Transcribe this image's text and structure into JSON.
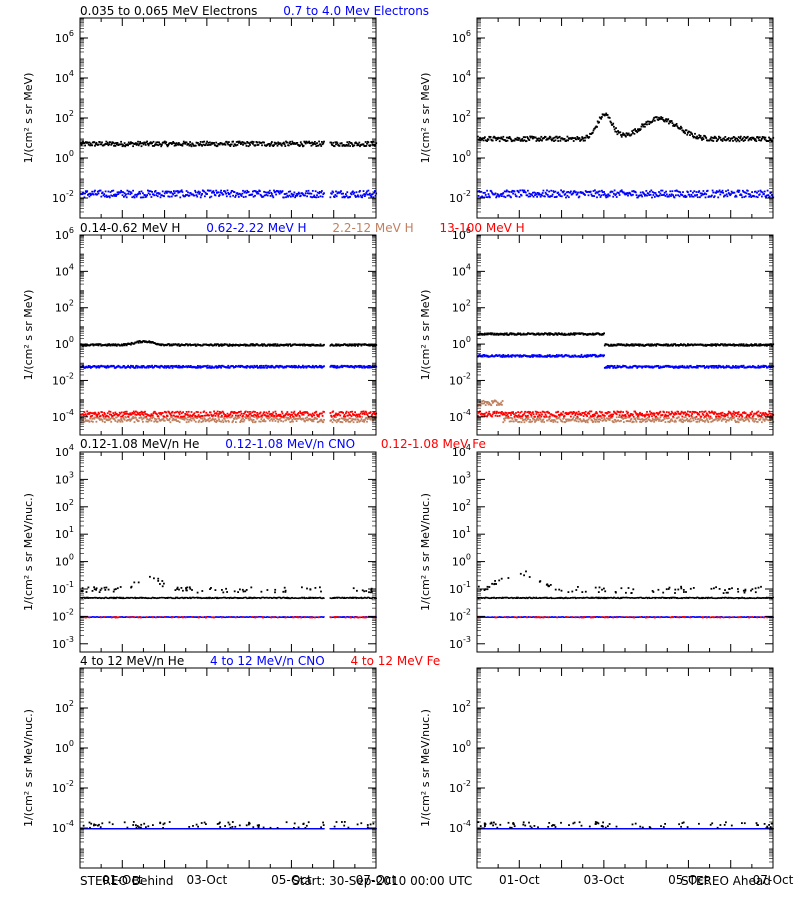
{
  "footer": {
    "left": "STEREO Behind",
    "center": "Start: 30-Sep-2010 00:00 UTC",
    "right": "STEREO Ahead"
  },
  "x_ticks": [
    "01-Oct",
    "03-Oct",
    "05-Oct",
    "07-Oct"
  ],
  "colors": {
    "black": "#000000",
    "blue": "#0000ff",
    "tan": "#c08060",
    "red": "#ff0000"
  },
  "chart_data": [
    {
      "type": "scatter",
      "row": 0,
      "titles": [
        {
          "text": "0.035 to 0.065 MeV Electrons",
          "color": "#000000"
        },
        {
          "text": "0.7 to 4.0 Mev Electrons",
          "color": "#0000ff"
        }
      ],
      "ylabel": "1/(cm² s sr MeV)",
      "yscale": "log",
      "ylim_exp": [
        -3,
        7
      ],
      "tick_exps": [
        -2,
        0,
        2,
        4,
        6
      ],
      "panels": [
        {
          "name": "STEREO Behind",
          "series": [
            {
              "color": "#000000",
              "level_exp": 0.75,
              "noise": 0.12
            },
            {
              "color": "#0000ff",
              "level_exp": -1.75,
              "noise": 0.18
            }
          ]
        },
        {
          "name": "STEREO Ahead",
          "series": [
            {
              "color": "#000000",
              "level_exp": 1.0,
              "noise": 0.12,
              "bumps": [
                {
                  "day": 3.0,
                  "amp": 1.2,
                  "w": 0.25
                },
                {
                  "day": 4.3,
                  "amp": 1.0,
                  "w": 0.6
                }
              ]
            },
            {
              "color": "#0000ff",
              "level_exp": -1.75,
              "noise": 0.18
            }
          ]
        }
      ]
    },
    {
      "type": "scatter",
      "row": 1,
      "titles": [
        {
          "text": "0.14-0.62 MeV H",
          "color": "#000000"
        },
        {
          "text": "0.62-2.22 MeV H",
          "color": "#0000ff"
        },
        {
          "text": "2.2-12 MeV H",
          "color": "#c08060"
        },
        {
          "text": "13-100 MeV H",
          "color": "#ff0000"
        }
      ],
      "ylabel": "1/(cm² s sr MeV)",
      "yscale": "log",
      "ylim_exp": [
        -5,
        6
      ],
      "tick_exps": [
        -4,
        -2,
        0,
        2,
        4,
        6
      ],
      "panels": [
        {
          "name": "STEREO Behind",
          "series": [
            {
              "color": "#000000",
              "level_exp": 0.0,
              "noise": 0.05,
              "bumps": [
                {
                  "day": 1.5,
                  "amp": 0.2,
                  "w": 0.3
                }
              ]
            },
            {
              "color": "#0000ff",
              "level_exp": -1.2,
              "noise": 0.06
            },
            {
              "color": "#c08060",
              "level_exp": -4.1,
              "noise": 0.15
            },
            {
              "color": "#ff0000",
              "level_exp": -3.8,
              "noise": 0.15
            }
          ]
        },
        {
          "name": "STEREO Ahead",
          "series": [
            {
              "color": "#000000",
              "level_exp": 0.0,
              "noise": 0.05,
              "early_exp": 0.6,
              "step_day": 3.0
            },
            {
              "color": "#0000ff",
              "level_exp": -1.2,
              "noise": 0.06,
              "early_exp": -0.6,
              "step_day": 3.0
            },
            {
              "color": "#c08060",
              "level_exp": -4.1,
              "noise": 0.15,
              "early_exp": -3.2,
              "step_day": 0.6
            },
            {
              "color": "#ff0000",
              "level_exp": -3.8,
              "noise": 0.15
            }
          ]
        }
      ]
    },
    {
      "type": "scatter",
      "row": 2,
      "titles": [
        {
          "text": "0.12-1.08 MeV/n He",
          "color": "#000000"
        },
        {
          "text": "0.12-1.08 MeV/n CNO",
          "color": "#0000ff"
        },
        {
          "text": "0.12-1.08 MeV Fe",
          "color": "#ff0000"
        }
      ],
      "ylabel": "1/(cm² s sr MeV/nuc.)",
      "yscale": "log",
      "ylim_exp": [
        -3.3,
        4
      ],
      "tick_exps": [
        -3,
        -2,
        -1,
        0,
        1,
        2,
        3,
        4
      ],
      "panels": [
        {
          "name": "STEREO Behind",
          "series": [
            {
              "color": "#000000",
              "level_exp": -1.3,
              "noise": 0.02,
              "line": true
            },
            {
              "color": "#000000",
              "level_exp": -1.0,
              "noise": 0.1,
              "sparse": true,
              "bumps": [
                {
                  "day": 1.6,
                  "amp": 0.55,
                  "w": 0.35
                }
              ]
            },
            {
              "color": "#0000ff",
              "level_exp": -2.0,
              "noise": 0.01,
              "line": true
            },
            {
              "color": "#ff0000",
              "level_exp": -2.0,
              "noise": 0.01,
              "sparse": true
            }
          ]
        },
        {
          "name": "STEREO Ahead",
          "series": [
            {
              "color": "#000000",
              "level_exp": -1.3,
              "noise": 0.02,
              "line": true
            },
            {
              "color": "#000000",
              "level_exp": -1.0,
              "noise": 0.12,
              "sparse": true,
              "bumps": [
                {
                  "day": 1.0,
                  "amp": 0.6,
                  "w": 0.6
                }
              ]
            },
            {
              "color": "#0000ff",
              "level_exp": -2.0,
              "noise": 0.01,
              "line": true
            },
            {
              "color": "#ff0000",
              "level_exp": -2.0,
              "noise": 0.01,
              "sparse": true
            }
          ]
        }
      ]
    },
    {
      "type": "scatter",
      "row": 3,
      "titles": [
        {
          "text": "4 to 12 MeV/n He",
          "color": "#000000"
        },
        {
          "text": "4 to 12 MeV/n CNO",
          "color": "#0000ff"
        },
        {
          "text": "4 to 12 MeV Fe",
          "color": "#ff0000"
        }
      ],
      "ylabel": "1/(cm² s sr MeV/nuc.)",
      "yscale": "log",
      "ylim_exp": [
        -6,
        4
      ],
      "tick_exps": [
        -4,
        -2,
        0,
        2
      ],
      "panels": [
        {
          "name": "STEREO Behind",
          "series": [
            {
              "color": "#0000ff",
              "level_exp": -4.0,
              "noise": 0.0,
              "line": true
            },
            {
              "color": "#000000",
              "level_exp": -3.8,
              "noise": 0.15,
              "sparse": true
            }
          ]
        },
        {
          "name": "STEREO Ahead",
          "series": [
            {
              "color": "#0000ff",
              "level_exp": -4.0,
              "noise": 0.0,
              "line": true
            },
            {
              "color": "#000000",
              "level_exp": -3.8,
              "noise": 0.15,
              "sparse": true
            }
          ]
        }
      ]
    }
  ]
}
